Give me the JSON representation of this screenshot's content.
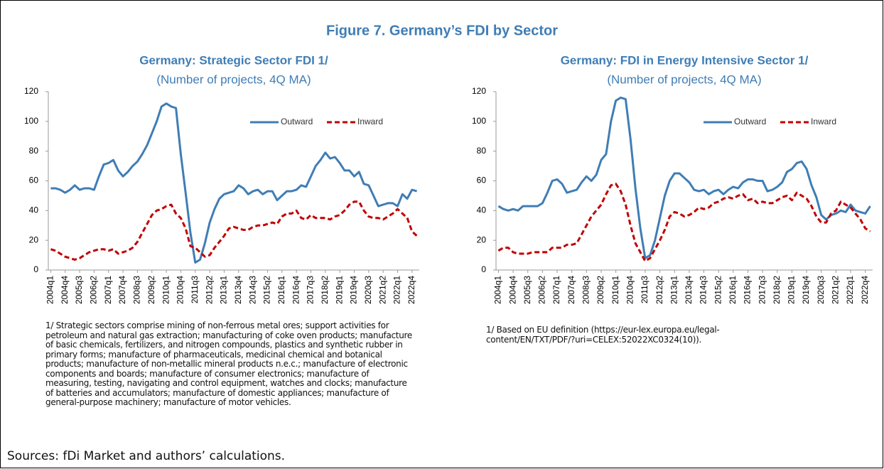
{
  "figure_title": "Figure 7. Germany’s FDI by Sector",
  "source": "Sources: fDi Market and authors’ calculations.",
  "chart_data": [
    {
      "type": "line",
      "title": "Germany: Strategic Sector FDI 1/",
      "subtitle": "(Number of projects, 4Q MA)",
      "categories": [
        "2004q1",
        null,
        null,
        "2004q4",
        null,
        null,
        "2005q3",
        null,
        null,
        "2006q2",
        null,
        null,
        "2007q1",
        null,
        null,
        "2007q4",
        null,
        null,
        "2008q3",
        null,
        null,
        "2009q2",
        null,
        null,
        "2010q1",
        null,
        null,
        "2010q4",
        null,
        null,
        "2011q3",
        null,
        null,
        "2012q2",
        null,
        null,
        "2013q1",
        null,
        null,
        "2013q4",
        null,
        null,
        "2014q3",
        null,
        null,
        "2015q2",
        null,
        null,
        "2016q1",
        null,
        null,
        "2016q4",
        null,
        null,
        "2017q3",
        null,
        null,
        "2018q2",
        null,
        null,
        "2019q1",
        null,
        null,
        "2019q4",
        null,
        null,
        "2020q3",
        null,
        null,
        "2021q2",
        null,
        null,
        "2022q1",
        null,
        null,
        "2022q4",
        null
      ],
      "series": [
        {
          "name": "Outward",
          "color": "#3f7db5",
          "dashed": false,
          "values": [
            55,
            55,
            54,
            52,
            54,
            57,
            54,
            55,
            55,
            54,
            63,
            71,
            72,
            74,
            67,
            63,
            66,
            70,
            73,
            78,
            84,
            92,
            100,
            110,
            112,
            110,
            109,
            78,
            52,
            25,
            5,
            7,
            18,
            32,
            41,
            48,
            51,
            52,
            53,
            57,
            55,
            51,
            53,
            54,
            51,
            53,
            53,
            47,
            50,
            53,
            53,
            54,
            57,
            56,
            63,
            70,
            74,
            79,
            75,
            76,
            72,
            67,
            67,
            63,
            66,
            58,
            57,
            50,
            43,
            44,
            45,
            45,
            43,
            51,
            48,
            54,
            53
          ]
        },
        {
          "name": "Inward",
          "color": "#c00000",
          "dashed": true,
          "values": [
            14,
            13,
            11,
            9,
            8,
            7,
            8,
            10,
            12,
            13,
            14,
            14,
            13,
            14,
            11,
            12,
            13,
            15,
            19,
            25,
            31,
            37,
            40,
            41,
            43,
            44,
            38,
            35,
            28,
            16,
            15,
            12,
            9,
            10,
            15,
            19,
            23,
            28,
            29,
            28,
            27,
            27,
            29,
            30,
            30,
            31,
            32,
            31,
            36,
            38,
            38,
            40,
            35,
            34,
            37,
            35,
            35,
            35,
            34,
            36,
            37,
            40,
            44,
            46,
            46,
            40,
            36,
            35,
            35,
            34,
            36,
            38,
            41,
            38,
            35,
            26,
            23
          ]
        }
      ],
      "ylim": [
        0,
        120
      ],
      "yticks": [
        0,
        20,
        40,
        60,
        80,
        100,
        120
      ],
      "grid": false,
      "legend": "top-right",
      "note": "1/ Strategic sectors comprise mining of non-ferrous metal ores; support activities for petroleum and natural gas extraction; manufacturing of coke oven products; manufacture of basic chemicals, fertilizers, and nitrogen compounds, plastics and synthetic rubber in primary forms; manufacture of pharmaceuticals, medicinal chemical and botanical products; manufacture of non-metallic mineral products n.e.c.; manufacture of electronic components and boards; manufacture of consumer electronics; manufacture of measuring, testing, navigating and control equipment, watches and clocks; manufacture of batteries and accumulators; manufacture of domestic appliances; manufacture of general-purpose machinery; manufacture of motor vehicles."
    },
    {
      "type": "line",
      "title": "Germany: FDI in Energy Intensive Sector 1/",
      "subtitle": "(Number of projects, 4Q MA)",
      "categories": [
        "2004q1",
        null,
        null,
        "2004q4",
        null,
        null,
        "2005q3",
        null,
        null,
        "2006q2",
        null,
        null,
        "2007q1",
        null,
        null,
        "2007q4",
        null,
        null,
        "2008q3",
        null,
        null,
        "2009q2",
        null,
        null,
        "2010q1",
        null,
        null,
        "2010q4",
        null,
        null,
        "2011q3",
        null,
        null,
        "2012q2",
        null,
        null,
        "2013q1",
        null,
        null,
        "2013q4",
        null,
        null,
        "2014q3",
        null,
        null,
        "2015q2",
        null,
        null,
        "2016q1",
        null,
        null,
        "2016q4",
        null,
        null,
        "2017q3",
        null,
        null,
        "2018q2",
        null,
        null,
        "2019q1",
        null,
        null,
        "2019q4",
        null,
        null,
        "2020q3",
        null,
        null,
        "2021q2",
        null,
        null,
        "2022q1",
        null,
        null,
        "2022q4",
        null
      ],
      "series": [
        {
          "name": "Outward",
          "color": "#3f7db5",
          "dashed": false,
          "values": [
            43,
            41,
            40,
            41,
            40,
            43,
            43,
            43,
            43,
            45,
            52,
            60,
            61,
            58,
            52,
            53,
            54,
            59,
            63,
            60,
            64,
            74,
            78,
            100,
            114,
            116,
            115,
            88,
            55,
            28,
            8,
            10,
            20,
            35,
            50,
            60,
            65,
            65,
            62,
            59,
            54,
            53,
            54,
            51,
            53,
            54,
            51,
            54,
            56,
            55,
            59,
            61,
            61,
            60,
            60,
            53,
            54,
            56,
            59,
            66,
            68,
            72,
            73,
            68,
            57,
            49,
            37,
            34,
            37,
            38,
            40,
            39,
            44,
            40,
            39,
            38,
            43
          ]
        },
        {
          "name": "Inward",
          "color": "#c00000",
          "dashed": true,
          "values": [
            13,
            15,
            15,
            12,
            11,
            11,
            11,
            12,
            12,
            12,
            12,
            15,
            15,
            15,
            17,
            17,
            18,
            24,
            30,
            36,
            40,
            44,
            51,
            57,
            58,
            53,
            44,
            30,
            18,
            12,
            6,
            8,
            14,
            20,
            27,
            36,
            39,
            38,
            36,
            37,
            39,
            42,
            41,
            42,
            45,
            46,
            48,
            49,
            48,
            50,
            51,
            47,
            48,
            45,
            46,
            45,
            45,
            47,
            49,
            50,
            47,
            52,
            50,
            48,
            43,
            36,
            32,
            32,
            38,
            40,
            46,
            44,
            42,
            38,
            34,
            28,
            26
          ]
        }
      ],
      "ylim": [
        0,
        120
      ],
      "yticks": [
        0,
        20,
        40,
        60,
        80,
        100,
        120
      ],
      "grid": false,
      "legend": "top-right",
      "note": "1/ Based on EU definition (https://eur-lex.europa.eu/legal-content/EN/TXT/PDF/?uri=CELEX:52022XC0324(10))."
    }
  ]
}
